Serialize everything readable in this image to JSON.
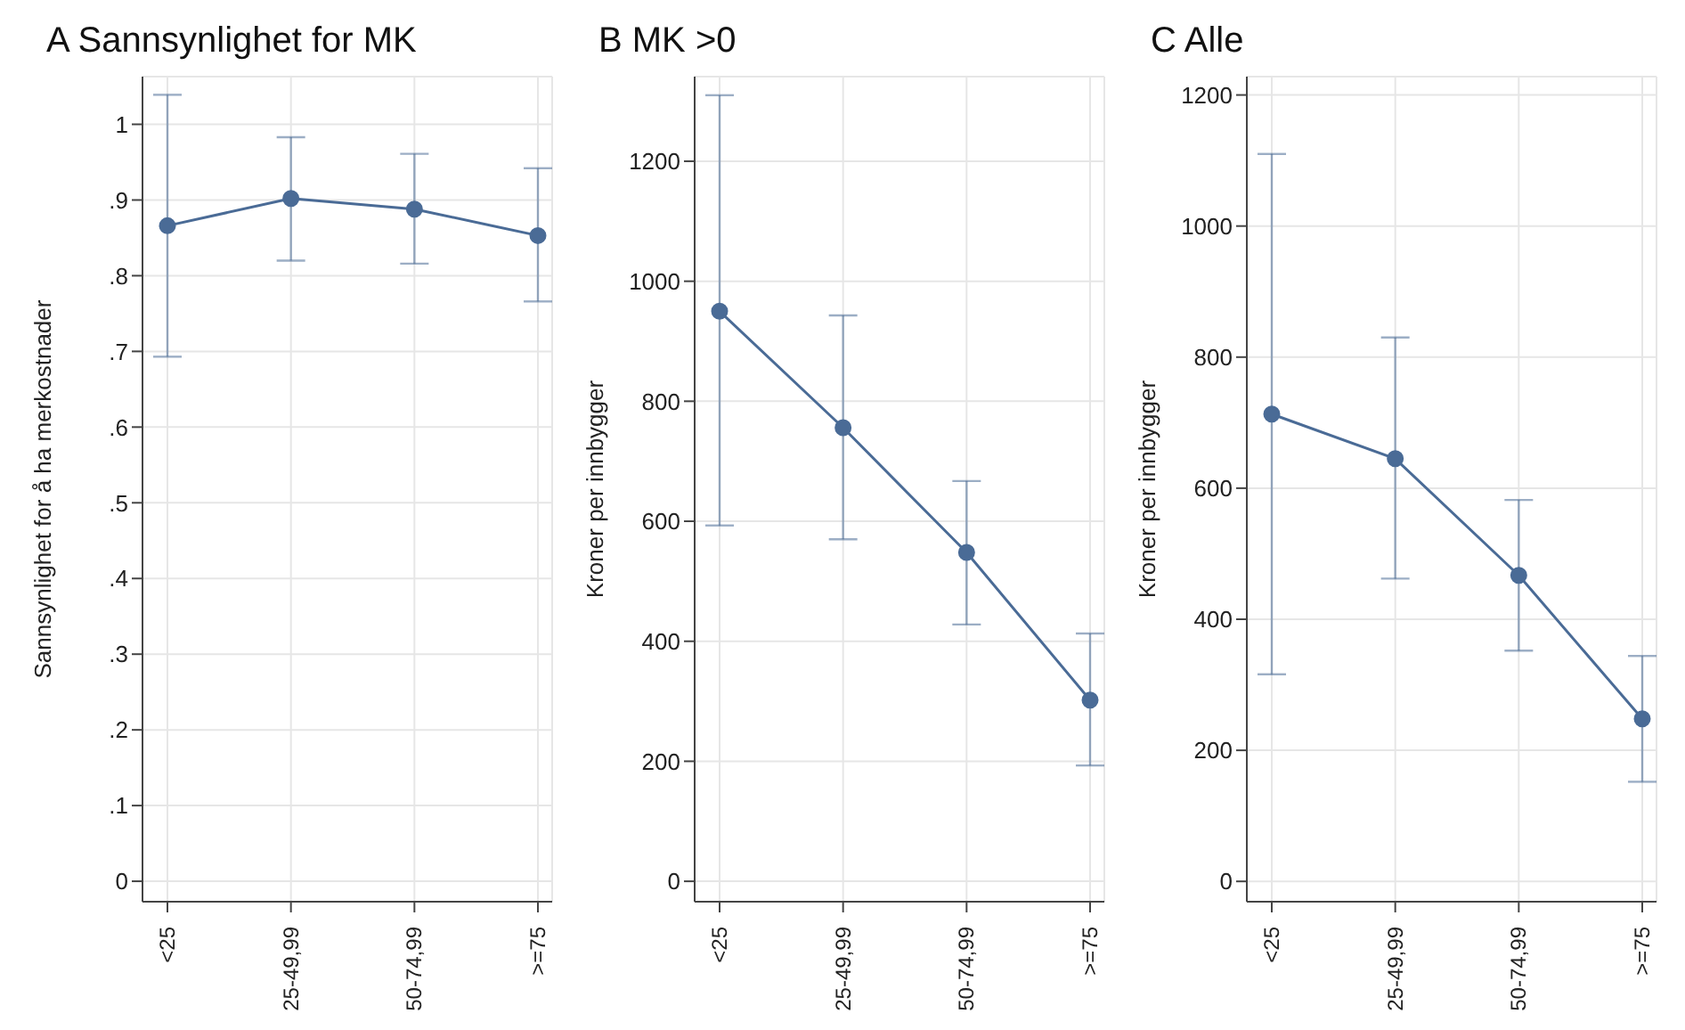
{
  "chart_data": [
    {
      "type": "line",
      "title": "A Sannsynlighet for MK",
      "ylabel": "Sannsynlighet for å ha merkostnader",
      "categories": [
        "<25",
        "25-49,99",
        "50-74,99",
        ">=75"
      ],
      "values": [
        0.866,
        0.902,
        0.888,
        0.853
      ],
      "errors": [
        [
          0.693,
          1.039
        ],
        [
          0.82,
          0.983
        ],
        [
          0.816,
          0.961
        ],
        [
          0.766,
          0.942
        ]
      ],
      "color": "#4a6b96",
      "marker": "circle",
      "grid": true,
      "ylim": [
        -0.027,
        1.063
      ],
      "yticks": [
        0,
        {
          "value": 0.1,
          "label": ".1"
        },
        {
          "value": 0.2,
          "label": ".2"
        },
        {
          "value": 0.3,
          "label": ".3"
        },
        {
          "value": 0.4,
          "label": ".4"
        },
        {
          "value": 0.5,
          "label": ".5"
        },
        {
          "value": 0.6,
          "label": ".6"
        },
        {
          "value": 0.7,
          "label": ".7"
        },
        {
          "value": 0.8,
          "label": ".8"
        },
        {
          "value": 0.9,
          "label": ".9"
        },
        1
      ]
    },
    {
      "type": "line",
      "title": "B MK >0",
      "ylabel": "Kroner per innbygger",
      "categories": [
        "<25",
        "25-49,99",
        "50-74,99",
        ">=75"
      ],
      "values": [
        950,
        756,
        548,
        302
      ],
      "errors": [
        [
          593,
          1310
        ],
        [
          570,
          943
        ],
        [
          428,
          667
        ],
        [
          193,
          413
        ]
      ],
      "color": "#4a6b96",
      "marker": "circle",
      "grid": true,
      "ylim": [
        -34,
        1341
      ],
      "yticks": [
        0,
        200,
        400,
        600,
        800,
        1000,
        1200
      ]
    },
    {
      "type": "line",
      "title": "C Alle",
      "ylabel": "Kroner per innbygger",
      "categories": [
        "<25",
        "25-49,99",
        "50-74,99",
        ">=75"
      ],
      "values": [
        713,
        645,
        467,
        248
      ],
      "errors": [
        [
          316,
          1110
        ],
        [
          462,
          830
        ],
        [
          352,
          582
        ],
        [
          152,
          344
        ]
      ],
      "color": "#4a6b96",
      "marker": "circle",
      "grid": true,
      "ylim": [
        -31,
        1228
      ],
      "yticks": [
        0,
        200,
        400,
        600,
        800,
        1000,
        1200
      ]
    }
  ]
}
